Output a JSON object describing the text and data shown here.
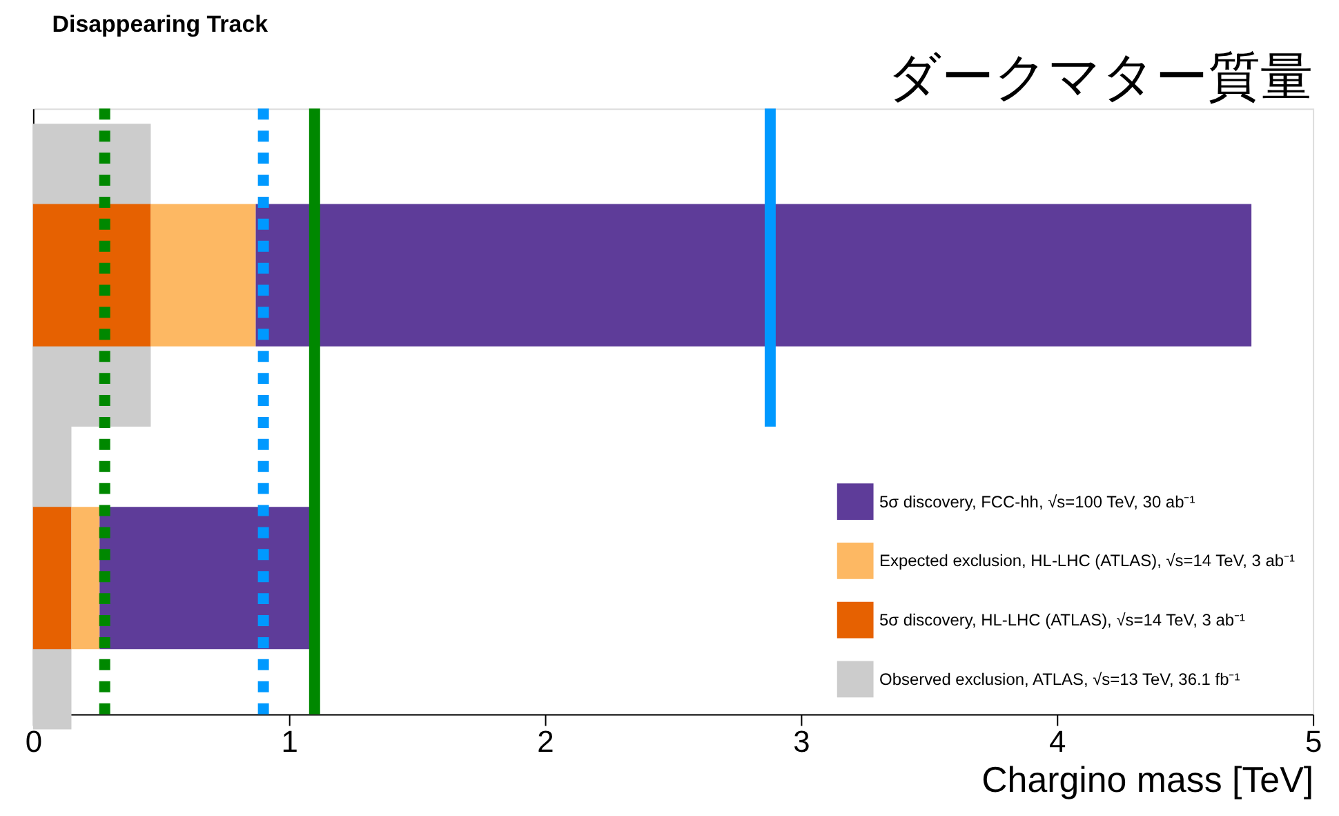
{
  "chart_data": {
    "type": "bar",
    "orientation": "horizontal",
    "title": "Disappearing Track",
    "xlabel": "Chargino mass [TeV]",
    "annotations": [
      "ダークマター質量"
    ],
    "categories": [
      null,
      null
    ],
    "series": [
      {
        "name": "5σ discovery, HL-LHC (ATLAS), √s=14 TeV, 3 ab⁻¹",
        "color": "#e66101",
        "values": [
          0.46,
          0.15
        ],
        "base": [
          0,
          0
        ]
      },
      {
        "name": "Expected exclusion, HL-LHC (ATLAS), √s=14 TeV, 3 ab⁻¹",
        "color": "#fdb863",
        "values": [
          0.41,
          0.11
        ],
        "base": [
          0.46,
          0.15
        ]
      },
      {
        "name": "5σ discovery, FCC-hh, √s=100 TeV, 30 ab⁻¹",
        "color": "#5e3c99",
        "values": [
          3.89,
          0.82
        ],
        "base": [
          0.87,
          0.26
        ]
      },
      {
        "name": "Observed exclusion, ATLAS, √s=13 TeV, 36.1 fb⁻¹",
        "color": "#cccccc",
        "values": [
          0.46,
          0.15
        ],
        "base": [
          0,
          0
        ]
      }
    ],
    "ref_lines": [
      {
        "axis": "x",
        "value": 0.28,
        "color": "#008800",
        "line_style": "dotted"
      },
      {
        "axis": "x",
        "value": 0.9,
        "color": "#0099ff",
        "line_style": "dotted"
      },
      {
        "axis": "x",
        "value": 1.1,
        "color": "#008800",
        "line_style": "solid"
      },
      {
        "axis": "x",
        "value": 2.88,
        "color": "#0099ff",
        "line_style": "solid"
      }
    ],
    "xlim": [
      0,
      5
    ],
    "xticks": [
      0,
      1,
      2,
      3,
      4,
      5
    ],
    "grid": false,
    "legend": "bottom right"
  }
}
